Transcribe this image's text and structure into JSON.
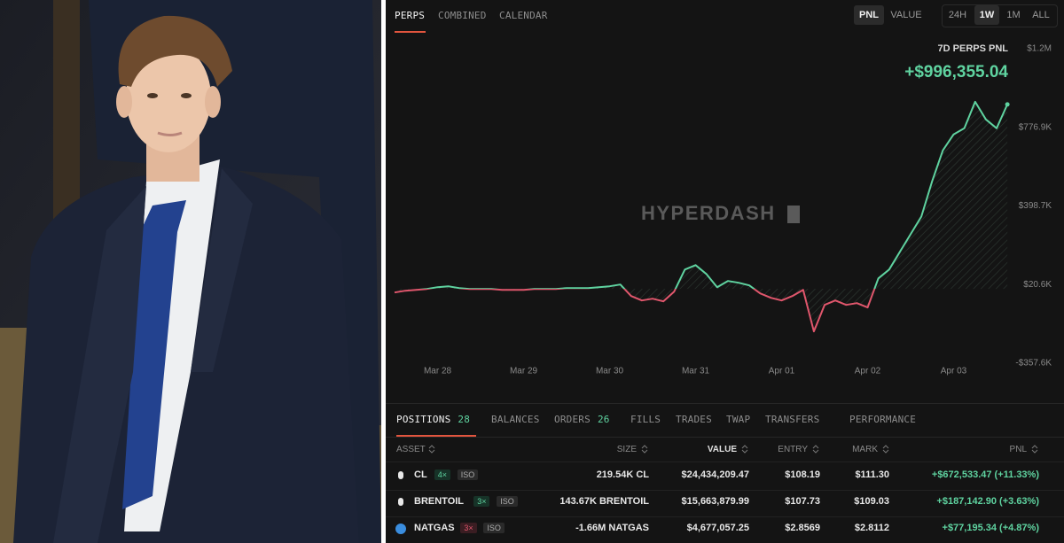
{
  "header": {
    "tabs": [
      "PERPS",
      "COMBINED",
      "CALENDAR"
    ],
    "modes": [
      "PNL",
      "VALUE"
    ],
    "ranges": [
      "24H",
      "1W",
      "1M",
      "ALL"
    ]
  },
  "chart_data": {
    "type": "line",
    "title": "7D PERPS PNL",
    "subtitle": "+$996,355.04",
    "watermark": "HYPERDASH",
    "color_up": "#5fd3a0",
    "color_down": "#e0566c",
    "categories": [
      null,
      null,
      null,
      null,
      "Mar 28",
      null,
      null,
      null,
      null,
      null,
      null,
      null,
      "Mar 29",
      null,
      null,
      null,
      null,
      null,
      null,
      null,
      "Mar 30",
      null,
      null,
      null,
      null,
      null,
      null,
      null,
      "Mar 31",
      null,
      null,
      null,
      null,
      null,
      null,
      null,
      "Apr 01",
      null,
      null,
      null,
      null,
      null,
      null,
      null,
      "Apr 02",
      null,
      null,
      null,
      null,
      null,
      null,
      null,
      "Apr 03",
      null,
      null,
      null,
      null,
      null
    ],
    "values": [
      -17600,
      -9100,
      -4900,
      -600,
      7900,
      12100,
      3600,
      -600,
      -600,
      -600,
      -4900,
      -4900,
      -4900,
      -600,
      -600,
      -600,
      3600,
      3600,
      3600,
      7900,
      12100,
      20600,
      -34600,
      -55900,
      -47400,
      -60100,
      -13400,
      92800,
      114100,
      71600,
      7900,
      37600,
      29100,
      16400,
      -21900,
      -43100,
      -55900,
      -34600,
      -4900,
      -204500,
      -77100,
      -55900,
      -77100,
      -68600,
      -89800,
      50300,
      92800,
      177800,
      262700,
      347700,
      517600,
      666300,
      742800,
      772500,
      899900,
      815000,
      772500,
      887200
    ],
    "ylim": [
      -357600,
      1155000
    ],
    "yticks": [
      {
        "value": 1155000,
        "label": "$1.2M"
      },
      {
        "value": 776900,
        "label": "$776.9K"
      },
      {
        "value": 398700,
        "label": "$398.7K"
      },
      {
        "value": 20600,
        "label": "$20.6K"
      },
      {
        "value": -357600,
        "label": "-$357.6K"
      }
    ]
  },
  "positions": {
    "tabs": [
      {
        "label": "POSITIONS",
        "count": 28
      },
      {
        "label": "BALANCES"
      },
      {
        "label": "ORDERS",
        "count": 26
      },
      {
        "label": "FILLS"
      },
      {
        "label": "TRADES"
      },
      {
        "label": "TWAP"
      },
      {
        "label": "TRANSFERS"
      },
      {
        "label": "PERFORMANCE"
      }
    ],
    "columns": [
      "ASSET",
      "SIZE",
      "VALUE",
      "ENTRY",
      "MARK",
      "PNL"
    ],
    "rows": [
      {
        "asset": "CL",
        "leverage": "4×",
        "margin": "ISO",
        "size": "219.54K CL",
        "value": "$24,434,209.47",
        "entry": "$108.19",
        "mark": "$111.30",
        "pnl": "+$672,533.47 (+11.33%)"
      },
      {
        "asset": "BRENTOIL",
        "leverage": "3×",
        "margin": "ISO",
        "size": "143.67K BRENTOIL",
        "value": "$15,663,879.99",
        "entry": "$107.73",
        "mark": "$109.03",
        "pnl": "+$187,142.90 (+3.63%)"
      },
      {
        "asset": "NATGAS",
        "leverage": "3×",
        "margin": "ISO",
        "size": "-1.66M NATGAS",
        "value": "$4,677,057.25",
        "entry": "$2.8569",
        "mark": "$2.8112",
        "pnl": "+$77,195.34 (+4.87%)"
      }
    ]
  }
}
